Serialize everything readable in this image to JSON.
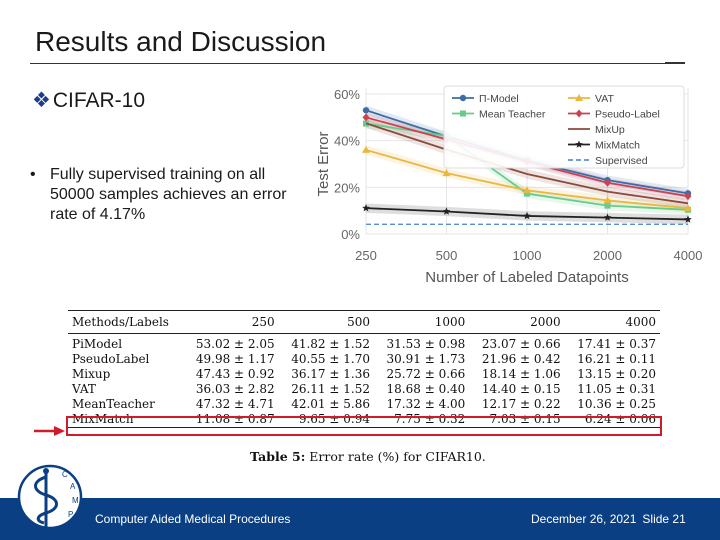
{
  "slide": {
    "title": "Results and Discussion",
    "section_mark": "❖",
    "section": "CIFAR-10",
    "bullet_mark": "•",
    "bullet": "Fully supervised training on all 50000 samples achieves an error rate of 4.17%"
  },
  "chart_data": {
    "type": "line",
    "x": [
      250,
      500,
      1000,
      2000,
      4000
    ],
    "xscale": "log",
    "xticks": [
      "250",
      "500",
      "1000",
      "2000",
      "4000"
    ],
    "xlabel": "Number of Labeled Datapoints",
    "ylabel": "Test Error",
    "yticks": [
      "0%",
      "20%",
      "40%",
      "60%"
    ],
    "ylim": [
      0,
      60
    ],
    "grid": true,
    "legend_position": "top-right",
    "series": [
      {
        "name": "Π-Model",
        "color": "#3b6ea5",
        "marker": "circle",
        "values": [
          53.02,
          41.82,
          31.53,
          23.07,
          17.41
        ]
      },
      {
        "name": "Mean Teacher",
        "color": "#66cc8a",
        "marker": "square",
        "values": [
          47.32,
          42.01,
          17.32,
          12.17,
          10.36
        ]
      },
      {
        "name": "VAT",
        "color": "#e8b840",
        "marker": "triangle",
        "values": [
          36.03,
          26.11,
          18.68,
          14.4,
          11.05
        ]
      },
      {
        "name": "Pseudo-Label",
        "color": "#c94355",
        "marker": "diamond",
        "values": [
          49.98,
          40.55,
          30.91,
          21.96,
          16.21
        ]
      },
      {
        "name": "MixUp",
        "color": "#8b4a3c",
        "marker": "none",
        "values": [
          47.43,
          36.17,
          25.72,
          18.14,
          13.15
        ]
      },
      {
        "name": "MixMatch",
        "color": "#222222",
        "marker": "star",
        "values": [
          11.08,
          9.65,
          7.75,
          7.03,
          6.24
        ]
      },
      {
        "name": "Supervised",
        "color": "#5b8fd6",
        "dashed": true,
        "values": [
          4.17,
          4.17,
          4.17,
          4.17,
          4.17
        ]
      }
    ]
  },
  "table": {
    "header": [
      "Methods/Labels",
      "250",
      "500",
      "1000",
      "2000",
      "4000"
    ],
    "rows": [
      [
        "PiModel",
        "53.02 ± 2.05",
        "41.82 ± 1.52",
        "31.53 ± 0.98",
        "23.07 ± 0.66",
        "17.41 ± 0.37"
      ],
      [
        "PseudoLabel",
        "49.98 ± 1.17",
        "40.55 ± 1.70",
        "30.91 ± 1.73",
        "21.96 ± 0.42",
        "16.21 ± 0.11"
      ],
      [
        "Mixup",
        "47.43 ± 0.92",
        "36.17 ± 1.36",
        "25.72 ± 0.66",
        "18.14 ± 1.06",
        "13.15 ± 0.20"
      ],
      [
        "VAT",
        "36.03 ± 2.82",
        "26.11 ± 1.52",
        "18.68 ± 0.40",
        "14.40 ± 0.15",
        "11.05 ± 0.31"
      ],
      [
        "MeanTeacher",
        "47.32 ± 4.71",
        "42.01 ± 5.86",
        "17.32 ± 4.00",
        "12.17 ± 0.22",
        "10.36 ± 0.25"
      ],
      [
        "MixMatch",
        "11.08 ± 0.87",
        "9.65 ± 0.94",
        "7.75 ± 0.32",
        "7.03 ± 0.15",
        "6.24 ± 0.06"
      ]
    ],
    "caption_label": "Table 5:",
    "caption_text": "Error rate (%) for CIFAR10."
  },
  "footer": {
    "left": "Computer Aided Medical Procedures",
    "date": "December 26, 2021",
    "slide": "Slide 21",
    "logo_letters": "CAMP"
  },
  "colors": {
    "footer_bg": "#0a3f83",
    "highlight": "#d11a2a"
  }
}
